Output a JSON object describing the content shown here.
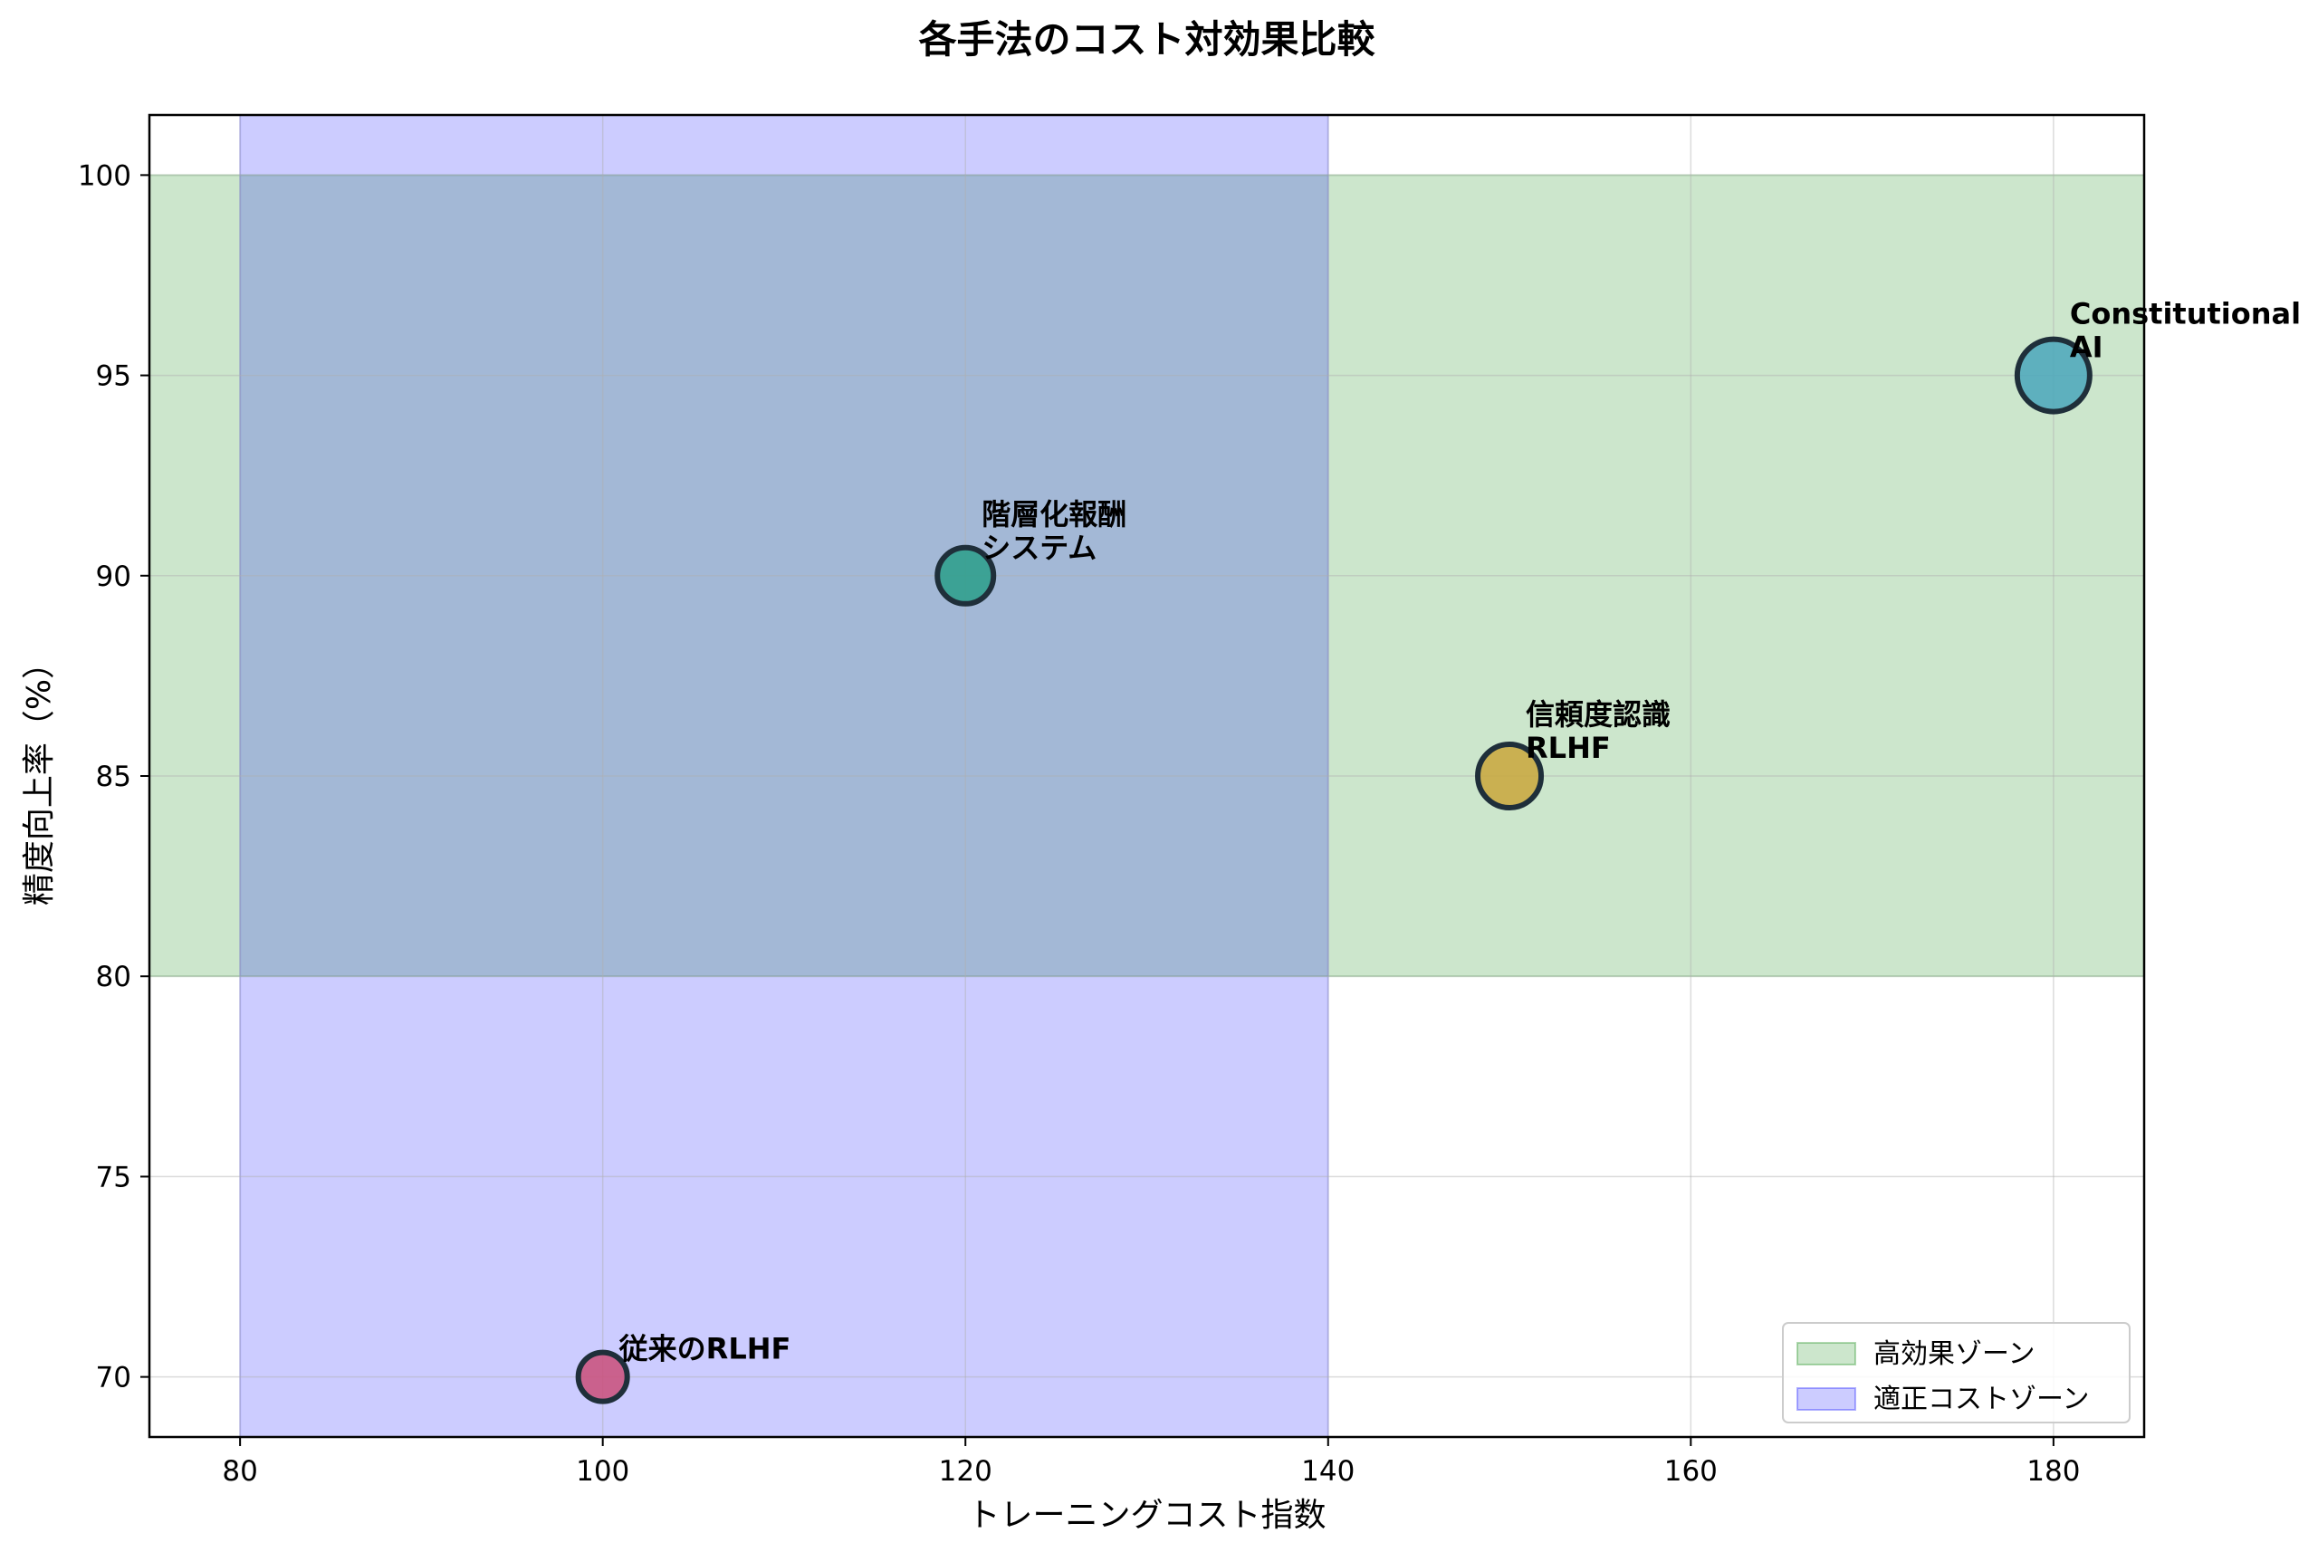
{
  "chart_data": {
    "type": "scatter",
    "title": "各手法のコスト対効果比較",
    "xlabel": "トレーニングコスト指数",
    "ylabel": "精度向上率（%）",
    "xlim": [
      75,
      185
    ],
    "ylim": [
      68.5,
      101.5
    ],
    "xticks": [
      80,
      100,
      120,
      140,
      160,
      180
    ],
    "yticks": [
      70,
      75,
      80,
      85,
      90,
      95,
      100
    ],
    "grid": true,
    "legend_position": "lower-right",
    "zones": [
      {
        "label": "高効果ゾーン",
        "axis": "y",
        "range": [
          80,
          100
        ],
        "color": "#008000",
        "alpha": 0.2
      },
      {
        "label": "適正コストゾーン",
        "axis": "x",
        "range": [
          80,
          140
        ],
        "color": "#0000ff",
        "alpha": 0.2
      }
    ],
    "points": [
      {
        "label": [
          "従来のRLHF"
        ],
        "x": 100,
        "y": 70,
        "color": "#c9527d",
        "size": "small"
      },
      {
        "label": [
          "階層化報酬",
          "システム"
        ],
        "x": 120,
        "y": 90,
        "color": "#2e9e8c",
        "size": "medium"
      },
      {
        "label": [
          "信頼度認識",
          "RLHF"
        ],
        "x": 150,
        "y": 85,
        "color": "#c9a940",
        "size": "large"
      },
      {
        "label": [
          "Constitutional",
          "AI"
        ],
        "x": 180,
        "y": 95,
        "color": "#4fa9bc",
        "size": "xlarge"
      }
    ]
  }
}
